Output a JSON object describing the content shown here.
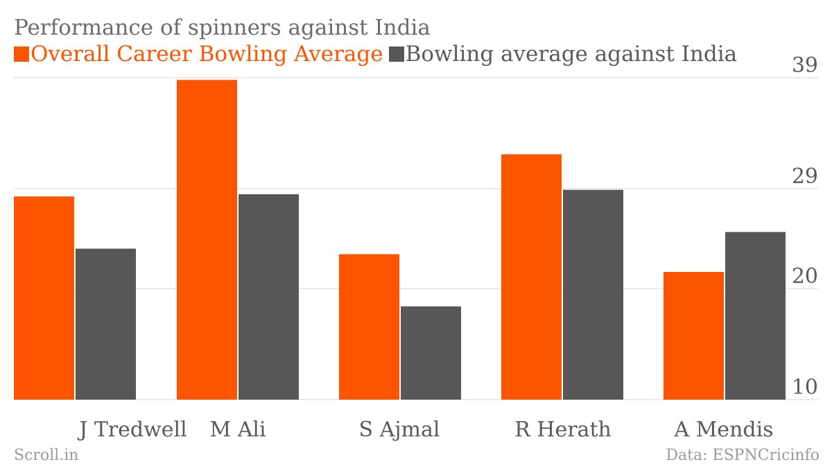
{
  "title": "Performance of spinners against India",
  "footer": {
    "left": "Scroll.in",
    "right": "Data: ESPNCricinfo"
  },
  "colors": {
    "career": "#fc5400",
    "india": "#575757",
    "grid": "#e4e4e4",
    "axis_text": "#5a5a5a"
  },
  "chart_data": {
    "type": "bar",
    "categories": [
      "J Tredwell",
      "M Ali",
      "S Ajmal",
      "R Herath",
      "A Mendis"
    ],
    "series": [
      {
        "name": "Overall Career Bowling Average",
        "values": [
          28.3,
          38.8,
          23.1,
          32.1,
          21.5
        ]
      },
      {
        "name": "Bowling average against India",
        "values": [
          23.6,
          28.5,
          18.4,
          28.9,
          25.1
        ]
      }
    ],
    "ylim": [
      10,
      39
    ],
    "yticks": [
      10,
      20,
      29,
      39
    ],
    "grid": true,
    "legend": "top-left",
    "xlabel": "",
    "ylabel": ""
  }
}
